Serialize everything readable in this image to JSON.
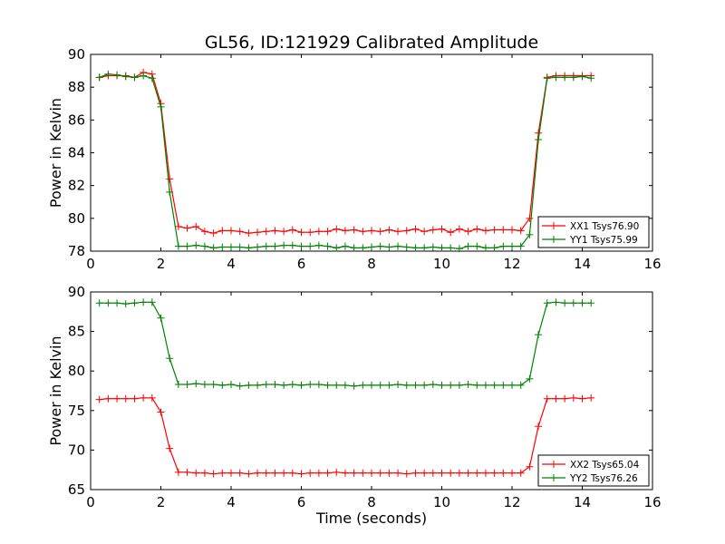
{
  "title": "GL56, ID:121929 Calibrated Amplitude",
  "chart_data": [
    {
      "type": "line",
      "xlabel": "",
      "ylabel": "Power in Kelvin",
      "xlim": [
        0,
        16
      ],
      "ylim": [
        78,
        90
      ],
      "xticks": [
        0,
        2,
        4,
        6,
        8,
        10,
        12,
        14,
        16
      ],
      "yticks": [
        78,
        80,
        82,
        84,
        86,
        88,
        90
      ],
      "grid": false,
      "legend_position": "lower-right",
      "x": [
        0.25,
        0.5,
        0.75,
        1.0,
        1.25,
        1.5,
        1.75,
        2.0,
        2.25,
        2.5,
        2.75,
        3.0,
        3.25,
        3.5,
        3.75,
        4.0,
        4.25,
        4.5,
        4.75,
        5.0,
        5.25,
        5.5,
        5.75,
        6.0,
        6.25,
        6.5,
        6.75,
        7.0,
        7.25,
        7.5,
        7.75,
        8.0,
        8.25,
        8.5,
        8.75,
        9.0,
        9.25,
        9.5,
        9.75,
        10.0,
        10.25,
        10.5,
        10.75,
        11.0,
        11.25,
        11.5,
        11.75,
        12.0,
        12.25,
        12.5,
        12.75,
        13.0,
        13.25,
        13.5,
        13.75,
        14.0,
        14.25
      ],
      "series": [
        {
          "name": "XX1 Tsys76.90",
          "color": "#ff0000",
          "values": [
            88.6,
            88.7,
            88.7,
            88.7,
            88.6,
            88.9,
            88.8,
            87.0,
            82.4,
            79.5,
            79.4,
            79.5,
            79.2,
            79.1,
            79.25,
            79.25,
            79.2,
            79.1,
            79.15,
            79.2,
            79.25,
            79.2,
            79.3,
            79.15,
            79.15,
            79.2,
            79.2,
            79.35,
            79.25,
            79.3,
            79.2,
            79.25,
            79.2,
            79.3,
            79.2,
            79.25,
            79.35,
            79.2,
            79.3,
            79.35,
            79.15,
            79.35,
            79.2,
            79.35,
            79.25,
            79.3,
            79.3,
            79.3,
            79.25,
            80.0,
            85.2,
            88.6,
            88.7,
            88.7,
            88.7,
            88.7,
            88.7
          ]
        },
        {
          "name": "YY1 Tsys75.99",
          "color": "#008000",
          "values": [
            88.6,
            88.8,
            88.75,
            88.65,
            88.6,
            88.7,
            88.55,
            86.8,
            81.6,
            78.3,
            78.3,
            78.35,
            78.3,
            78.2,
            78.25,
            78.25,
            78.25,
            78.2,
            78.25,
            78.3,
            78.3,
            78.35,
            78.35,
            78.3,
            78.3,
            78.35,
            78.3,
            78.2,
            78.3,
            78.2,
            78.2,
            78.25,
            78.3,
            78.25,
            78.3,
            78.25,
            78.2,
            78.2,
            78.25,
            78.2,
            78.2,
            78.15,
            78.3,
            78.3,
            78.2,
            78.2,
            78.3,
            78.3,
            78.3,
            79.0,
            84.8,
            88.55,
            88.6,
            88.6,
            88.6,
            88.65,
            88.55
          ]
        }
      ]
    },
    {
      "type": "line",
      "xlabel": "Time (seconds)",
      "ylabel": "Power in Kelvin",
      "xlim": [
        0,
        16
      ],
      "ylim": [
        65,
        90
      ],
      "xticks": [
        0,
        2,
        4,
        6,
        8,
        10,
        12,
        14,
        16
      ],
      "yticks": [
        65,
        70,
        75,
        80,
        85,
        90
      ],
      "grid": false,
      "legend_position": "lower-right",
      "x": [
        0.25,
        0.5,
        0.75,
        1.0,
        1.25,
        1.5,
        1.75,
        2.0,
        2.25,
        2.5,
        2.75,
        3.0,
        3.25,
        3.5,
        3.75,
        4.0,
        4.25,
        4.5,
        4.75,
        5.0,
        5.25,
        5.5,
        5.75,
        6.0,
        6.25,
        6.5,
        6.75,
        7.0,
        7.25,
        7.5,
        7.75,
        8.0,
        8.25,
        8.5,
        8.75,
        9.0,
        9.25,
        9.5,
        9.75,
        10.0,
        10.25,
        10.5,
        10.75,
        11.0,
        11.25,
        11.5,
        11.75,
        12.0,
        12.25,
        12.5,
        12.75,
        13.0,
        13.25,
        13.5,
        13.75,
        14.0,
        14.25
      ],
      "series": [
        {
          "name": "XX2 Tsys65.04",
          "color": "#ff0000",
          "values": [
            76.4,
            76.5,
            76.5,
            76.5,
            76.5,
            76.6,
            76.6,
            74.8,
            70.2,
            67.2,
            67.2,
            67.1,
            67.1,
            67.0,
            67.1,
            67.1,
            67.1,
            67.0,
            67.1,
            67.1,
            67.1,
            67.1,
            67.1,
            67.0,
            67.1,
            67.1,
            67.1,
            67.2,
            67.1,
            67.1,
            67.1,
            67.1,
            67.1,
            67.1,
            67.1,
            67.0,
            67.1,
            67.1,
            67.1,
            67.1,
            67.1,
            67.1,
            67.1,
            67.1,
            67.1,
            67.1,
            67.1,
            67.1,
            67.1,
            67.9,
            73.0,
            76.5,
            76.5,
            76.5,
            76.6,
            76.5,
            76.6
          ]
        },
        {
          "name": "YY2 Tsys76.26",
          "color": "#008000",
          "values": [
            88.6,
            88.6,
            88.6,
            88.5,
            88.6,
            88.7,
            88.7,
            86.7,
            81.6,
            78.3,
            78.3,
            78.4,
            78.3,
            78.3,
            78.2,
            78.3,
            78.1,
            78.2,
            78.2,
            78.3,
            78.3,
            78.2,
            78.3,
            78.2,
            78.3,
            78.3,
            78.2,
            78.2,
            78.2,
            78.1,
            78.2,
            78.2,
            78.2,
            78.2,
            78.3,
            78.2,
            78.2,
            78.2,
            78.3,
            78.2,
            78.2,
            78.2,
            78.3,
            78.2,
            78.2,
            78.2,
            78.2,
            78.2,
            78.2,
            79.0,
            84.6,
            88.6,
            88.7,
            88.6,
            88.6,
            88.6,
            88.6
          ]
        }
      ]
    }
  ]
}
